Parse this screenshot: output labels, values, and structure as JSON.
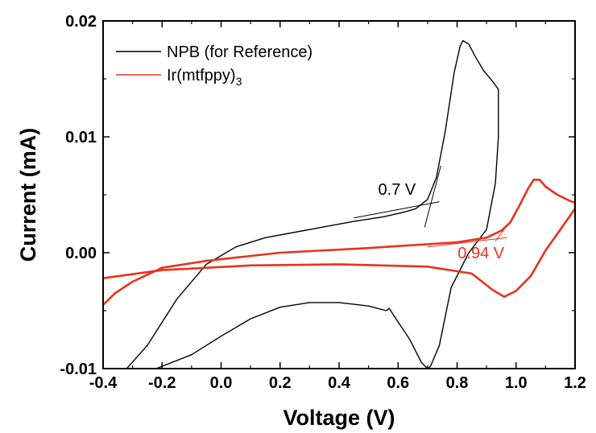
{
  "chart_data": {
    "type": "line",
    "xlabel": "Voltage (V)",
    "ylabel": "Current (mA)",
    "xlim": [
      -0.4,
      1.2
    ],
    "ylim": [
      -0.01,
      0.02
    ],
    "x_ticks": [
      "-0.4",
      "-0.2",
      "0.0",
      "0.2",
      "0.4",
      "0.6",
      "0.8",
      "1.0",
      "1.2"
    ],
    "y_ticks": [
      "-0.01",
      "0.00",
      "0.01",
      "0.02"
    ],
    "grid": false,
    "legend_position": "top-left",
    "legend": [
      {
        "label": "NPB (for Reference)",
        "color": "#000000"
      },
      {
        "label_main": "Ir(mtfppy)",
        "label_sub": "3",
        "color": "#e8321e"
      }
    ],
    "series": [
      {
        "name": "NPB (for Reference)",
        "color": "#000000",
        "points": [
          [
            -0.32,
            -0.01
          ],
          [
            -0.25,
            -0.008
          ],
          [
            -0.15,
            -0.004
          ],
          [
            -0.05,
            -0.001
          ],
          [
            0.05,
            0.0005
          ],
          [
            0.15,
            0.0013
          ],
          [
            0.3,
            0.002
          ],
          [
            0.45,
            0.0027
          ],
          [
            0.55,
            0.0031
          ],
          [
            0.62,
            0.0035
          ],
          [
            0.66,
            0.0038
          ],
          [
            0.7,
            0.0046
          ],
          [
            0.73,
            0.0065
          ],
          [
            0.76,
            0.0105
          ],
          [
            0.79,
            0.0155
          ],
          [
            0.81,
            0.0178
          ],
          [
            0.82,
            0.0183
          ],
          [
            0.84,
            0.018
          ],
          [
            0.86,
            0.017
          ],
          [
            0.89,
            0.0157
          ],
          [
            0.92,
            0.0148
          ],
          [
            0.94,
            0.0141
          ],
          [
            0.94,
            0.01
          ],
          [
            0.93,
            0.006
          ],
          [
            0.9,
            0.002
          ],
          [
            0.84,
            0.0
          ],
          [
            0.78,
            -0.003
          ],
          [
            0.74,
            -0.008
          ],
          [
            0.71,
            -0.0098
          ],
          [
            0.7,
            -0.01
          ],
          [
            0.68,
            -0.0095
          ],
          [
            0.64,
            -0.0075
          ],
          [
            0.58,
            -0.0052
          ],
          [
            0.57,
            -0.0048
          ],
          [
            0.56,
            -0.005
          ],
          [
            0.5,
            -0.0046
          ],
          [
            0.4,
            -0.0043
          ],
          [
            0.3,
            -0.0043
          ],
          [
            0.2,
            -0.0047
          ],
          [
            0.1,
            -0.0057
          ],
          [
            0.0,
            -0.0072
          ],
          [
            -0.1,
            -0.0088
          ],
          [
            -0.2,
            -0.0098
          ],
          [
            -0.22,
            -0.01
          ]
        ]
      },
      {
        "name": "Ir(mtfppy)3",
        "color": "#e8321e",
        "points": [
          [
            -0.4,
            -0.0045
          ],
          [
            -0.36,
            -0.0035
          ],
          [
            -0.3,
            -0.0025
          ],
          [
            -0.2,
            -0.0013
          ],
          [
            -0.05,
            -0.0007
          ],
          [
            0.2,
            0.0
          ],
          [
            0.5,
            0.0004
          ],
          [
            0.8,
            0.0009
          ],
          [
            0.9,
            0.0013
          ],
          [
            0.95,
            0.0019
          ],
          [
            0.98,
            0.0026
          ],
          [
            1.01,
            0.004
          ],
          [
            1.04,
            0.0055
          ],
          [
            1.06,
            0.0063
          ],
          [
            1.08,
            0.0063
          ],
          [
            1.1,
            0.0057
          ],
          [
            1.14,
            0.005
          ],
          [
            1.18,
            0.0045
          ],
          [
            1.2,
            0.0043
          ],
          [
            1.2,
            0.0038
          ],
          [
            1.15,
            0.002
          ],
          [
            1.1,
            0.0002
          ],
          [
            1.05,
            -0.002
          ],
          [
            1.0,
            -0.0033
          ],
          [
            0.96,
            -0.0038
          ],
          [
            0.92,
            -0.0032
          ],
          [
            0.85,
            -0.0018
          ],
          [
            0.7,
            -0.0012
          ],
          [
            0.4,
            -0.001
          ],
          [
            0.1,
            -0.0011
          ],
          [
            -0.2,
            -0.0015
          ],
          [
            -0.4,
            -0.0022
          ]
        ]
      }
    ],
    "annotations": [
      {
        "text": "0.7 V",
        "x": 0.66,
        "y": 0.005,
        "color": "#000000"
      },
      {
        "text": "0.94 V",
        "x": 0.96,
        "y": -0.0005,
        "color": "#e8321e"
      }
    ],
    "tangent_lines": [
      {
        "color": "#000000",
        "points": [
          [
            0.45,
            0.003
          ],
          [
            0.74,
            0.0044
          ]
        ]
      },
      {
        "color": "#000000",
        "points": [
          [
            0.69,
            0.0022
          ],
          [
            0.745,
            0.0075
          ]
        ]
      },
      {
        "color": "#e8321e",
        "points": [
          [
            0.7,
            0.0005
          ],
          [
            0.97,
            0.0013
          ]
        ]
      },
      {
        "color": "#e8321e",
        "points": [
          [
            0.93,
            0.001
          ],
          [
            1.0,
            0.0034
          ]
        ]
      }
    ]
  }
}
